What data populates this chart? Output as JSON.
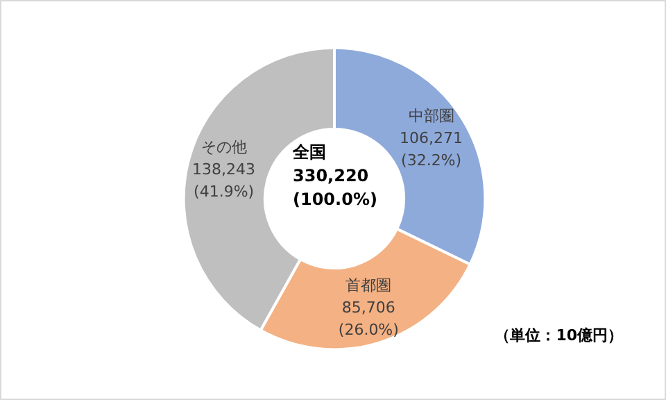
{
  "chart_data": {
    "type": "donut",
    "categories": [
      "中部圏",
      "首都圏",
      "その他"
    ],
    "values": [
      106271,
      85706,
      138243
    ],
    "colors": [
      "#8eaadb",
      "#f4b183",
      "#bfbfbf"
    ],
    "value_labels": [
      "106,271\n(32.2%)",
      "85,706\n(26.0%)",
      "138,243\n(41.9%)"
    ],
    "annotations": [
      "全国\n330,220\n(100.0%)",
      "（単位：10億円）"
    ],
    "legend": false
  }
}
